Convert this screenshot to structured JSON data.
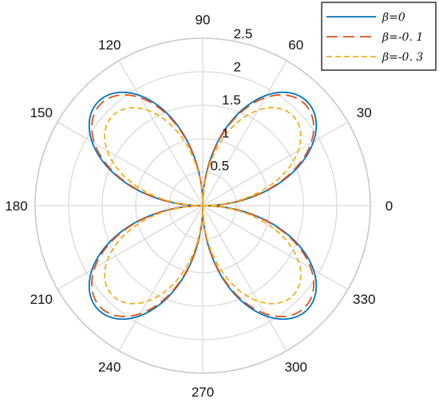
{
  "chart_data": {
    "type": "polar-line",
    "title": "",
    "angle_ticks": [
      "0",
      "30",
      "60",
      "90",
      "120",
      "150",
      "180",
      "210",
      "240",
      "270",
      "300",
      "330"
    ],
    "angle_tick_values_deg": [
      0,
      30,
      60,
      90,
      120,
      150,
      180,
      210,
      240,
      270,
      300,
      330
    ],
    "radial_ticks": [
      "0.5",
      "1",
      "1.5",
      "2",
      "2.5"
    ],
    "radial_tick_values": [
      0.5,
      1,
      1.5,
      2,
      2.5
    ],
    "rlim": [
      0,
      2.5
    ],
    "grid": true,
    "legend_position": "top-right",
    "curve_form": "r = peak * |sin(2*theta)|",
    "series": [
      {
        "name": "β=0",
        "legend_label": "β=0",
        "peak": 2.2,
        "color": "#0072bd",
        "dash": "solid"
      },
      {
        "name": "β=-0.1",
        "legend_label": "β=-0. 1",
        "peak": 2.15,
        "color": "#d95319",
        "dash": "long-dash"
      },
      {
        "name": "β=-0.3",
        "legend_label": "β=-0. 3",
        "peak": 1.9,
        "color": "#edb120",
        "dash": "short-dash"
      }
    ]
  }
}
